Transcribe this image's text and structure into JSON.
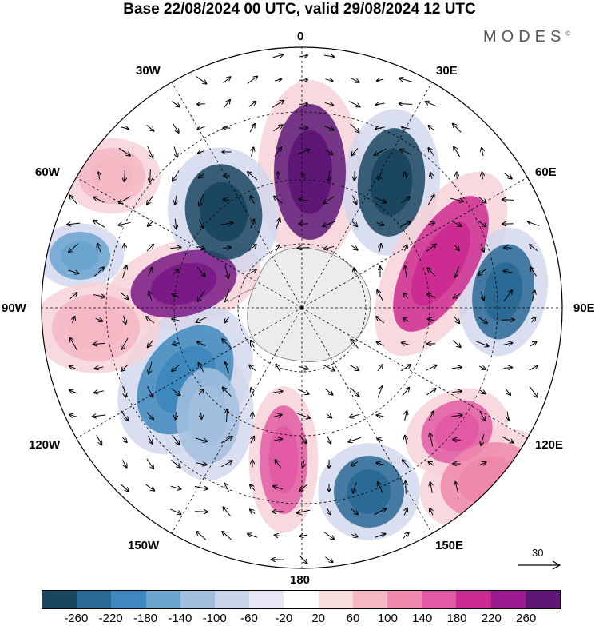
{
  "title": "Base 22/08/2024 00 UTC, valid 29/08/2024 12 UTC",
  "brand": "MODES",
  "brand_mark": "©",
  "longitudes": {
    "lon_0": "0",
    "lon_30e": "30E",
    "lon_60e": "60E",
    "lon_90e": "90E",
    "lon_120e": "120E",
    "lon_150e": "150E",
    "lon_180": "180",
    "lon_150w": "150W",
    "lon_120w": "120W",
    "lon_90w": "90W",
    "lon_60w": "60W",
    "lon_30w": "30W"
  },
  "reference_vector": "30",
  "colorbar": {
    "colors": [
      "#1b4660",
      "#2a6a94",
      "#3f88bd",
      "#6aa5d0",
      "#a3bfdf",
      "#c9d3ea",
      "#e6e6f4",
      "#ffffff",
      "#f9dede",
      "#f4b7c3",
      "#ef88ad",
      "#e25aa3",
      "#cc2b91",
      "#9a1a8f",
      "#5e1777"
    ],
    "labels": [
      "-260",
      "-220",
      "-180",
      "-140",
      "-100",
      "-60",
      "-20",
      "20",
      "60",
      "100",
      "140",
      "180",
      "220",
      "260"
    ]
  },
  "anomaly_cells": [
    {
      "value": 262,
      "color": "#5e1777"
    },
    {
      "value": 250,
      "color": "#7a1a86"
    },
    {
      "value": -235,
      "color": "#1b4660"
    },
    {
      "value": -220,
      "color": "#1b4660"
    },
    {
      "value": 180,
      "color": "#cc2b91"
    },
    {
      "value": -170,
      "color": "#2a6a94"
    },
    {
      "value": -160,
      "color": "#2a6a94"
    },
    {
      "value": 150,
      "color": "#e25aa3"
    },
    {
      "value": 140,
      "color": "#e25aa3"
    },
    {
      "value": -140,
      "color": "#3f88bd"
    },
    {
      "value": 100,
      "color": "#ef88ad"
    },
    {
      "value": -110,
      "color": "#6aa5d0"
    },
    {
      "value": 60,
      "color": "#f4b7c3"
    },
    {
      "value": 60,
      "color": "#f4b7c3"
    },
    {
      "value": -60,
      "color": "#a3bfdf"
    }
  ]
}
